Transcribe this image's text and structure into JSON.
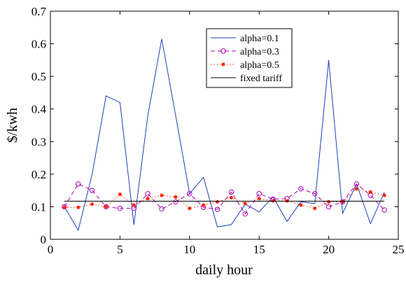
{
  "chart_data": {
    "type": "line",
    "title": "",
    "xlabel": "daily hour",
    "ylabel": "$/kwh",
    "xlim": [
      0,
      25
    ],
    "ylim": [
      0,
      0.7
    ],
    "xticks": [
      0,
      5,
      10,
      15,
      20,
      25
    ],
    "yticks": [
      0,
      0.1,
      0.2,
      0.3,
      0.4,
      0.5,
      0.6,
      0.7
    ],
    "xtick_labels": [
      "0",
      "5",
      "10",
      "15",
      "20",
      "25"
    ],
    "ytick_labels": [
      "0",
      "0.1",
      "0.2",
      "0.3",
      "0.4",
      "0.5",
      "0.6",
      "0.7"
    ],
    "grid": false,
    "legend_position": "top-center",
    "x": [
      1,
      2,
      3,
      4,
      5,
      6,
      7,
      8,
      9,
      10,
      11,
      12,
      13,
      14,
      15,
      16,
      17,
      18,
      19,
      20,
      21,
      22,
      23,
      24
    ],
    "series": [
      {
        "name": "alpha=0.1",
        "color": "#1f3fbf",
        "style": "solid",
        "marker": "none",
        "values": [
          0.1,
          0.028,
          0.2,
          0.44,
          0.42,
          0.045,
          0.38,
          0.615,
          0.38,
          0.14,
          0.19,
          0.038,
          0.045,
          0.108,
          0.084,
          0.13,
          0.055,
          0.115,
          0.11,
          0.55,
          0.08,
          0.17,
          0.048,
          0.145
        ]
      },
      {
        "name": "alpha=0.3",
        "color": "#b000b0",
        "style": "dashed",
        "marker": "circle",
        "values": [
          0.1,
          0.17,
          0.15,
          0.1,
          0.095,
          0.095,
          0.14,
          0.093,
          0.115,
          0.14,
          0.098,
          0.092,
          0.145,
          0.078,
          0.14,
          0.123,
          0.125,
          0.155,
          0.14,
          0.1,
          0.115,
          0.17,
          0.135,
          0.09
        ]
      },
      {
        "name": "alpha=0.5",
        "color": "#ff2000",
        "style": "dotted",
        "marker": "asterisk",
        "values": [
          0.098,
          0.098,
          0.108,
          0.1,
          0.138,
          0.105,
          0.125,
          0.135,
          0.13,
          0.095,
          0.105,
          0.115,
          0.128,
          0.11,
          0.125,
          0.118,
          0.118,
          0.105,
          0.095,
          0.115,
          0.115,
          0.155,
          0.145,
          0.135
        ]
      },
      {
        "name": "fixed tariff",
        "color": "#000000",
        "style": "solid",
        "marker": "none",
        "values": [
          0.117,
          0.117,
          0.117,
          0.117,
          0.117,
          0.117,
          0.117,
          0.117,
          0.117,
          0.117,
          0.117,
          0.117,
          0.117,
          0.117,
          0.117,
          0.117,
          0.117,
          0.117,
          0.117,
          0.117,
          0.117,
          0.117,
          0.117,
          0.117
        ]
      }
    ]
  }
}
